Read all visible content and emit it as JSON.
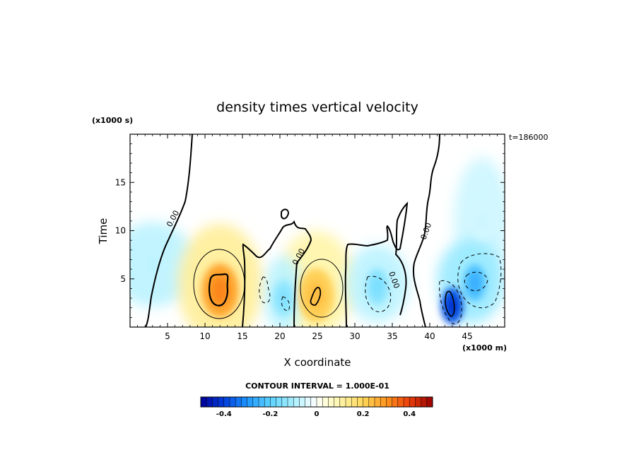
{
  "chart_data": {
    "type": "heatmap",
    "title": "density times vertical velocity",
    "xlabel": "X coordinate",
    "ylabel": "Time",
    "x_unit_label": "(x1000 m)",
    "y_unit_label": "(x1000 s)",
    "time_stamp": "t=186000",
    "xlim": [
      0,
      50
    ],
    "ylim": [
      0,
      20
    ],
    "x_ticks": [
      5,
      10,
      15,
      20,
      25,
      30,
      35,
      40,
      45
    ],
    "x_tick_labels": [
      "5",
      "10",
      "15",
      "20",
      "25",
      "30",
      "35",
      "40",
      "45"
    ],
    "y_ticks": [
      5,
      10,
      15
    ],
    "y_tick_labels": [
      "5",
      "10",
      "15"
    ],
    "contour_interval_text": "CONTOUR INTERVAL = 1.000E-01",
    "contour_label": "0.00",
    "colorbar": {
      "min": -0.5,
      "max": 0.5,
      "ticks": [
        -0.4,
        -0.2,
        0,
        0.2,
        0.4
      ],
      "tick_labels": [
        "-0.4",
        "-0.2",
        "0",
        "0.2",
        "0.4"
      ]
    },
    "features": [
      {
        "x": 12,
        "y": 3.8,
        "value": 0.32
      },
      {
        "x": 24.8,
        "y": 3.3,
        "value": 0.24
      },
      {
        "x": 20.5,
        "y": 3.0,
        "value": -0.15
      },
      {
        "x": 33,
        "y": 4.2,
        "value": -0.16
      },
      {
        "x": 43,
        "y": 2.2,
        "value": -0.42
      },
      {
        "x": 46,
        "y": 4.6,
        "value": -0.26
      },
      {
        "x": 3,
        "y": 6.5,
        "value": -0.08
      },
      {
        "x": 47,
        "y": 11,
        "value": -0.06
      }
    ]
  }
}
